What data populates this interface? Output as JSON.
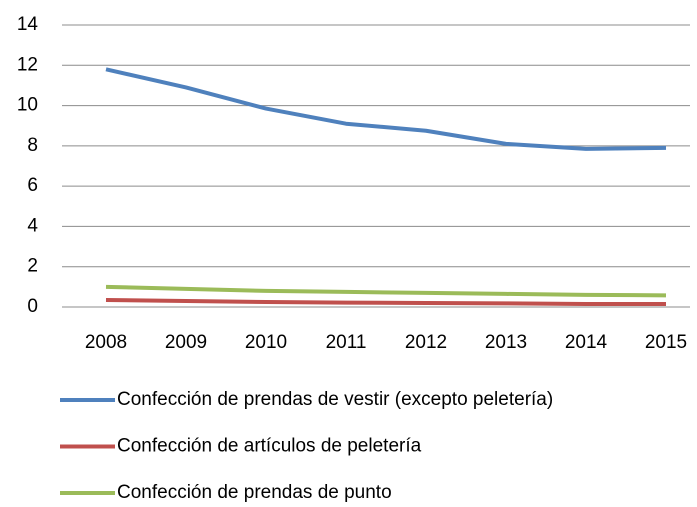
{
  "chart_data": {
    "type": "line",
    "categories": [
      "2008",
      "2009",
      "2010",
      "2011",
      "2012",
      "2013",
      "2014",
      "2015"
    ],
    "series": [
      {
        "name": "Confección de prendas de vestir (excepto peletería)",
        "color": "#4f81bd",
        "values": [
          11.8,
          10.9,
          9.85,
          9.1,
          8.75,
          8.1,
          7.85,
          7.9
        ]
      },
      {
        "name": "Confección de artículos de peletería",
        "color": "#c0504d",
        "values": [
          0.35,
          0.3,
          0.25,
          0.22,
          0.2,
          0.18,
          0.15,
          0.15
        ]
      },
      {
        "name": "Confección de prendas de punto",
        "color": "#9bbb59",
        "values": [
          1.0,
          0.9,
          0.8,
          0.75,
          0.7,
          0.65,
          0.6,
          0.58
        ]
      }
    ],
    "ylim": [
      0,
      14
    ],
    "yticks": [
      0,
      2,
      4,
      6,
      8,
      10,
      12,
      14
    ],
    "grid": true,
    "legend": "bottom"
  }
}
